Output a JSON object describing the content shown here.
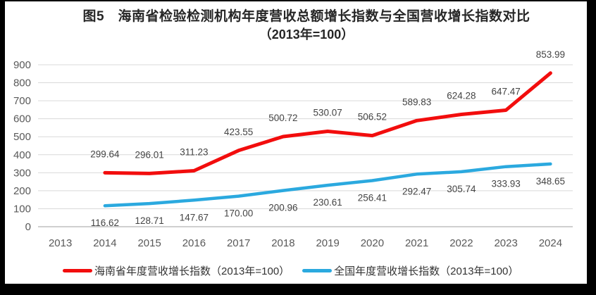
{
  "figure_label": "图5",
  "colors": {
    "hainan_line": "#f20d0d",
    "national_line": "#2ba9df",
    "gridline": "#d9d9d9",
    "axis_line": "#bfbfbf",
    "axis_text": "#595959",
    "data_label_text": "#444444",
    "title_text": "#262626",
    "frame_border": "#000000"
  },
  "chart_data": {
    "type": "line",
    "title": "图5　海南省检验检测机构年度营收总额增长指数与全国营收增长指数对比",
    "subtitle": "（2013年=100）",
    "x_categories": [
      "2013",
      "2014",
      "2015",
      "2016",
      "2017",
      "2018",
      "2019",
      "2020",
      "2021",
      "2022",
      "2023",
      "2024"
    ],
    "ylim": [
      0,
      900
    ],
    "y_tick_step": 100,
    "y_ticks": [
      0,
      100,
      200,
      300,
      400,
      500,
      600,
      700,
      800,
      900
    ],
    "grid": true,
    "legend_position": "bottom",
    "series": [
      {
        "name": "海南省年度营收增长指数（2013年=100）",
        "color": "#f20d0d",
        "start_category": "2014",
        "values": [
          299.64,
          296.01,
          311.23,
          423.55,
          500.72,
          530.07,
          506.52,
          589.83,
          624.28,
          647.47,
          853.99
        ],
        "label_position": "above",
        "line_width": 5
      },
      {
        "name": "全国年度营收增长指数（2013年=100）",
        "color": "#2ba9df",
        "start_category": "2014",
        "values": [
          116.62,
          128.71,
          147.67,
          170.0,
          200.96,
          230.61,
          256.41,
          292.47,
          305.74,
          333.93,
          348.65
        ],
        "label_position": "below",
        "line_width": 4.5
      }
    ]
  }
}
